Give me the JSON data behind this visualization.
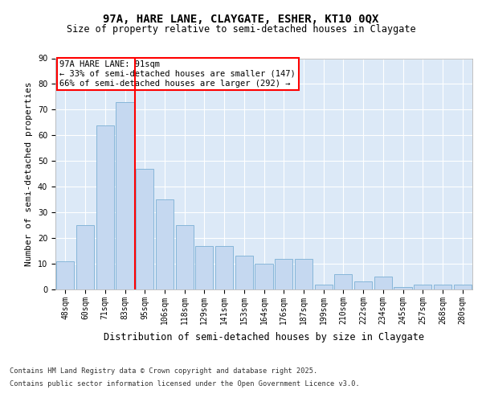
{
  "title": "97A, HARE LANE, CLAYGATE, ESHER, KT10 0QX",
  "subtitle": "Size of property relative to semi-detached houses in Claygate",
  "xlabel": "Distribution of semi-detached houses by size in Claygate",
  "ylabel": "Number of semi-detached properties",
  "categories": [
    "48sqm",
    "60sqm",
    "71sqm",
    "83sqm",
    "95sqm",
    "106sqm",
    "118sqm",
    "129sqm",
    "141sqm",
    "153sqm",
    "164sqm",
    "176sqm",
    "187sqm",
    "199sqm",
    "210sqm",
    "222sqm",
    "234sqm",
    "245sqm",
    "257sqm",
    "268sqm",
    "280sqm"
  ],
  "values": [
    11,
    25,
    64,
    73,
    47,
    35,
    25,
    17,
    17,
    13,
    10,
    12,
    12,
    2,
    6,
    3,
    5,
    1,
    2,
    2,
    2
  ],
  "bar_color": "#c5d8f0",
  "bar_edge_color": "#7bafd4",
  "vline_x": 3.5,
  "vline_color": "red",
  "annotation_title": "97A HARE LANE: 91sqm",
  "annotation_line1": "← 33% of semi-detached houses are smaller (147)",
  "annotation_line2": "66% of semi-detached houses are larger (292) →",
  "annotation_box_color": "white",
  "annotation_box_edge": "red",
  "ylim": [
    0,
    90
  ],
  "yticks": [
    0,
    10,
    20,
    30,
    40,
    50,
    60,
    70,
    80,
    90
  ],
  "background_color": "#dce9f7",
  "footer_line1": "Contains HM Land Registry data © Crown copyright and database right 2025.",
  "footer_line2": "Contains public sector information licensed under the Open Government Licence v3.0.",
  "title_fontsize": 10,
  "subtitle_fontsize": 8.5,
  "ylabel_fontsize": 8,
  "xlabel_fontsize": 8.5,
  "tick_fontsize": 7,
  "annotation_fontsize": 7.5,
  "footer_fontsize": 6.2
}
